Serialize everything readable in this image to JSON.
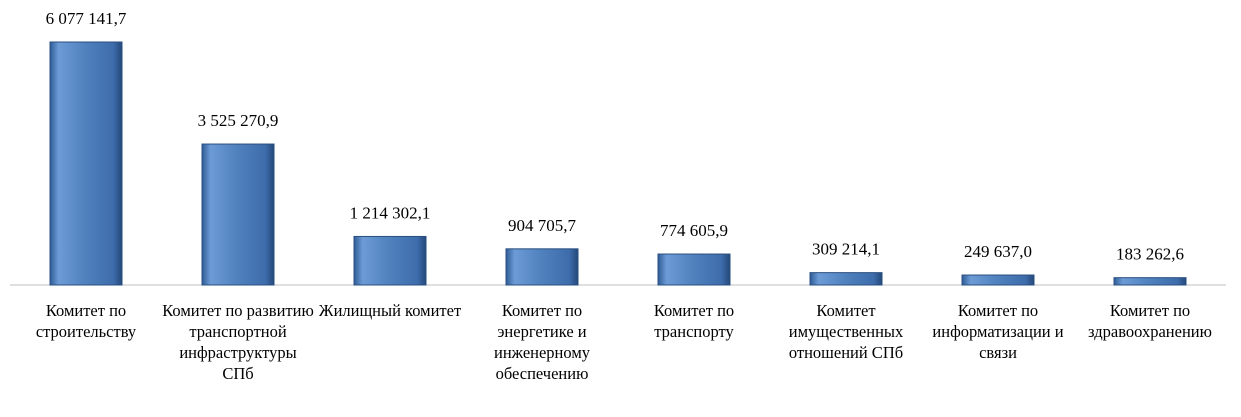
{
  "chart_data": {
    "type": "bar",
    "categories": [
      "Комитет по строительству",
      "Комитет по развитию транспортной инфраструктуры СПб",
      "Жилищный комитет",
      "Комитет по энергетике и инженерному обеспечению",
      "Комитет по транспорту",
      "Комитет имущественных отношений СПб",
      "Комитет по информатизации и связи",
      "Комитет по здравоохранению"
    ],
    "values": [
      6077141.7,
      3525270.9,
      1214302.1,
      904705.7,
      774605.9,
      309214.1,
      249637.0,
      183262.6
    ],
    "value_labels": [
      "6 077 141,7",
      "3 525 270,9",
      "1 214 302,1",
      "904 705,7",
      "774 605,9",
      "309 214,1",
      "249 637,0",
      "183 262,6"
    ],
    "color": "#4f81bd"
  }
}
